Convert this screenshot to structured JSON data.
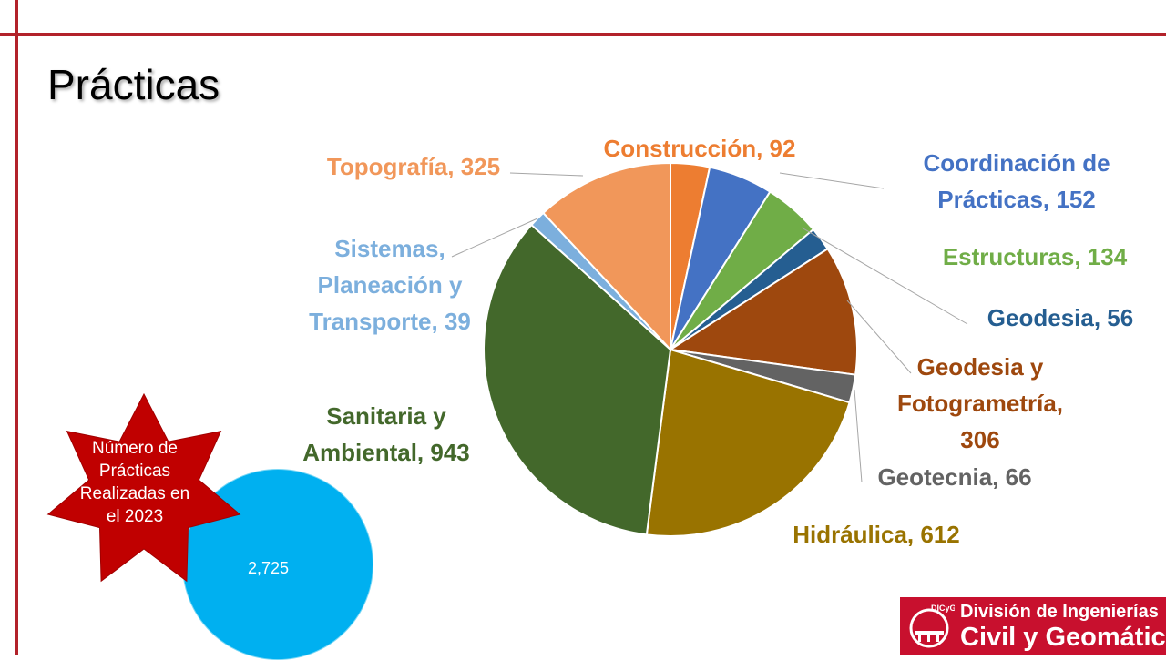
{
  "slide": {
    "title": "Prácticas"
  },
  "total_badge": {
    "caption_lines": [
      "Número de",
      "Prácticas",
      "Realizadas en",
      "el 2023"
    ],
    "value": "2,725"
  },
  "logo": {
    "emblem_text": "DICyG",
    "line1": "División de Ingenierías",
    "line2": "Civil y Geomática"
  },
  "colors": {
    "rule": "#b2222a",
    "badge_star": "#c00000",
    "badge_circle": "#00b0f0",
    "logo_bg": "#c8102e"
  },
  "chart_data": {
    "type": "pie",
    "categories": [
      "Construcción",
      "Coordinación de Prácticas",
      "Estructuras",
      "Geodesia",
      "Geodesia y Fotogrametría",
      "Geotecnia",
      "Hidráulica",
      "Sanitaria y Ambiental",
      "Sistemas, Planeación y Transporte",
      "Topografía"
    ],
    "values": [
      92,
      152,
      134,
      56,
      306,
      66,
      612,
      943,
      39,
      325
    ],
    "colors": [
      "#ed7d31",
      "#4472c4",
      "#70ad47",
      "#255e91",
      "#9e480e",
      "#636363",
      "#997300",
      "#43682b",
      "#7cafdd",
      "#f1975a"
    ],
    "label_lines": [
      [
        "Construcción, 92"
      ],
      [
        "Coordinación de",
        "Prácticas, 152"
      ],
      [
        "Estructuras, 134"
      ],
      [
        "Geodesia, 56"
      ],
      [
        "Geodesia y",
        "Fotogrametría,",
        "306"
      ],
      [
        "Geotecnia, 66"
      ],
      [
        "Hidráulica, 612"
      ],
      [
        "Sanitaria y",
        "Ambiental, 943"
      ],
      [
        "Sistemas,",
        "Planeación y",
        "Transporte, 39"
      ],
      [
        "Topografía, 325"
      ]
    ],
    "label_colors": [
      "#ed7d31",
      "#4472c4",
      "#70ad47",
      "#255e91",
      "#9e480e",
      "#636363",
      "#997300",
      "#43682b",
      "#7cafdd",
      "#f1975a"
    ],
    "start_angle_deg": 0,
    "direction": "clockwise"
  }
}
